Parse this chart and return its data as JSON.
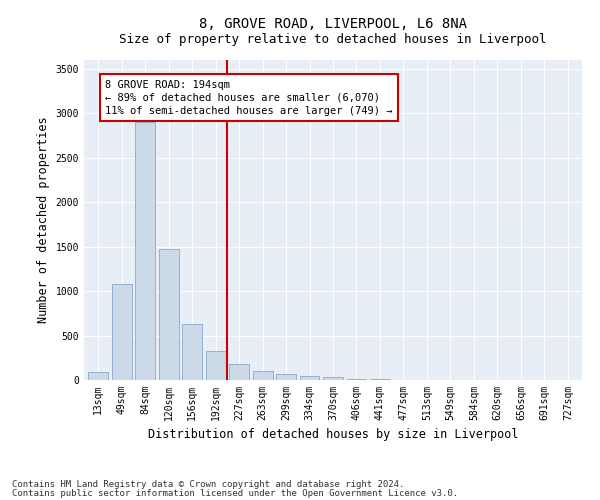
{
  "title_line1": "8, GROVE ROAD, LIVERPOOL, L6 8NA",
  "title_line2": "Size of property relative to detached houses in Liverpool",
  "xlabel": "Distribution of detached houses by size in Liverpool",
  "ylabel": "Number of detached properties",
  "bar_labels": [
    "13sqm",
    "49sqm",
    "84sqm",
    "120sqm",
    "156sqm",
    "192sqm",
    "227sqm",
    "263sqm",
    "299sqm",
    "334sqm",
    "370sqm",
    "406sqm",
    "441sqm",
    "477sqm",
    "513sqm",
    "549sqm",
    "584sqm",
    "620sqm",
    "656sqm",
    "691sqm",
    "727sqm"
  ],
  "bar_values": [
    90,
    1080,
    2900,
    1470,
    630,
    330,
    180,
    100,
    65,
    45,
    30,
    10,
    8,
    5,
    5,
    4,
    4,
    3,
    3,
    3,
    3
  ],
  "bar_color": "#ccd9e8",
  "bar_edge_color": "#88aacc",
  "vline_x_index": 5,
  "vline_color": "#cc0000",
  "annotation_text": "8 GROVE ROAD: 194sqm\n← 89% of detached houses are smaller (6,070)\n11% of semi-detached houses are larger (749) →",
  "annotation_box_color": "#cc0000",
  "ylim": [
    0,
    3600
  ],
  "yticks": [
    0,
    500,
    1000,
    1500,
    2000,
    2500,
    3000,
    3500
  ],
  "plot_bg_color": "#e8eef5",
  "footer_line1": "Contains HM Land Registry data © Crown copyright and database right 2024.",
  "footer_line2": "Contains public sector information licensed under the Open Government Licence v3.0.",
  "title_fontsize": 10,
  "subtitle_fontsize": 9,
  "axis_label_fontsize": 8.5,
  "tick_fontsize": 7,
  "annotation_fontsize": 7.5,
  "footer_fontsize": 6.5
}
